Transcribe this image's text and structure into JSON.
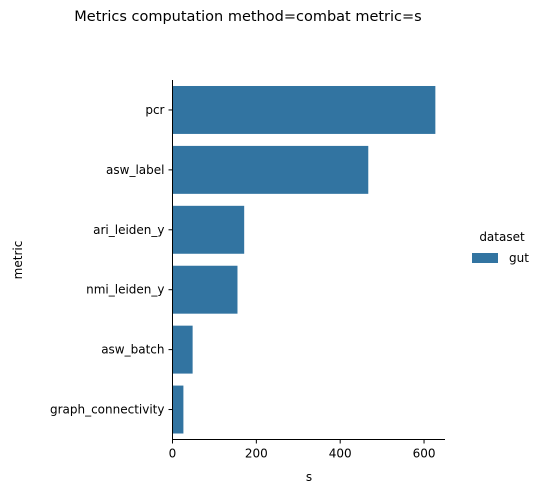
{
  "chart_data": {
    "type": "bar",
    "orientation": "horizontal",
    "title": "Metrics computation method=combat metric=s",
    "xlabel": "s",
    "ylabel": "metric",
    "categories": [
      "pcr",
      "asw_label",
      "ari_leiden_y",
      "nmi_leiden_y",
      "asw_batch",
      "graph_connectivity"
    ],
    "series": [
      {
        "name": "gut",
        "values": [
          627,
          467,
          171,
          155,
          48,
          26
        ],
        "color": "#3274a1"
      }
    ],
    "xlim": [
      0,
      650
    ],
    "xticks": [
      0,
      200,
      400,
      600
    ],
    "legend": {
      "title": "dataset",
      "placement": "right"
    },
    "grid": false
  }
}
